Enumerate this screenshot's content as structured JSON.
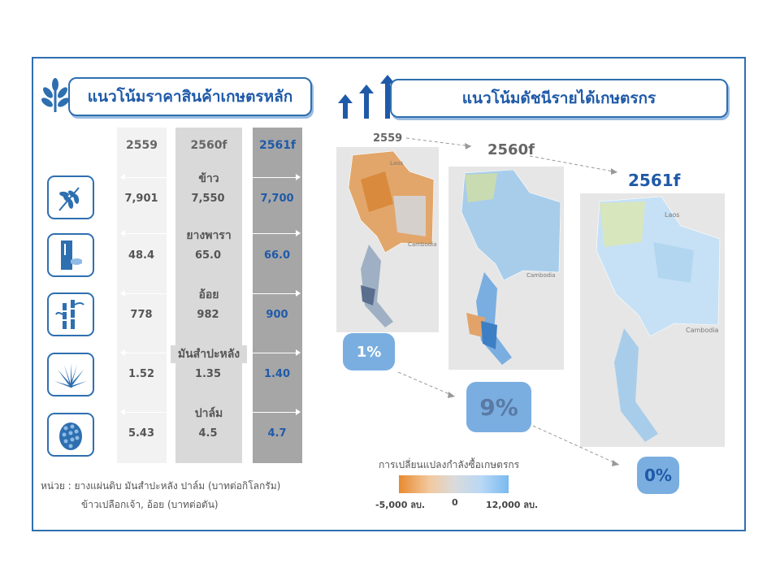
{
  "left_panel": {
    "title": "แนวโน้มราคาสินค้าเกษตรหลัก",
    "years": [
      "2559",
      "2560f",
      "2561f"
    ],
    "crops": [
      {
        "name": "ข้าว",
        "icon": "rice-icon",
        "values": [
          "7,901",
          "7,550",
          "7,700"
        ]
      },
      {
        "name": "ยางพารา",
        "icon": "rubber-icon",
        "values": [
          "48.4",
          "65.0",
          "66.0"
        ]
      },
      {
        "name": "อ้อย",
        "icon": "sugarcane-icon",
        "values": [
          "778",
          "982",
          "900"
        ]
      },
      {
        "name": "มันสำปะหลัง",
        "icon": "cassava-icon",
        "values": [
          "1.52",
          "1.35",
          "1.40"
        ]
      },
      {
        "name": "ปาล์ม",
        "icon": "palm-icon",
        "values": [
          "5.43",
          "4.5",
          "4.7"
        ]
      }
    ],
    "unit_line1": "หน่วย : ยางแผ่นดิบ มันสำปะหลัง ปาล์ม (บาทต่อกิโลกรัม)",
    "unit_line2": "ข้าวเปลือกเจ้า, อ้อย (บาทต่อตัน)"
  },
  "right_panel": {
    "title": "แนวโน้มดัชนีรายได้เกษตรกร",
    "maps": [
      {
        "year": "2559",
        "change": "1%",
        "labels": [
          "Laos",
          "Cambodia"
        ]
      },
      {
        "year": "2560f",
        "change": "9%",
        "labels": [
          "Cambodia"
        ]
      },
      {
        "year": "2561f",
        "change": "0%",
        "labels": [
          "Laos",
          "Cambodia"
        ]
      }
    ],
    "legend": {
      "title": "การเปลี่ยนแปลงกำลังซื้อเกษตรกร",
      "min": "-5,000 ลบ.",
      "mid": "0",
      "max": "12,000 ลบ."
    }
  },
  "colors": {
    "brand": "#2e6fb0",
    "negative": "#e88a2e",
    "positive": "#79baf0"
  }
}
